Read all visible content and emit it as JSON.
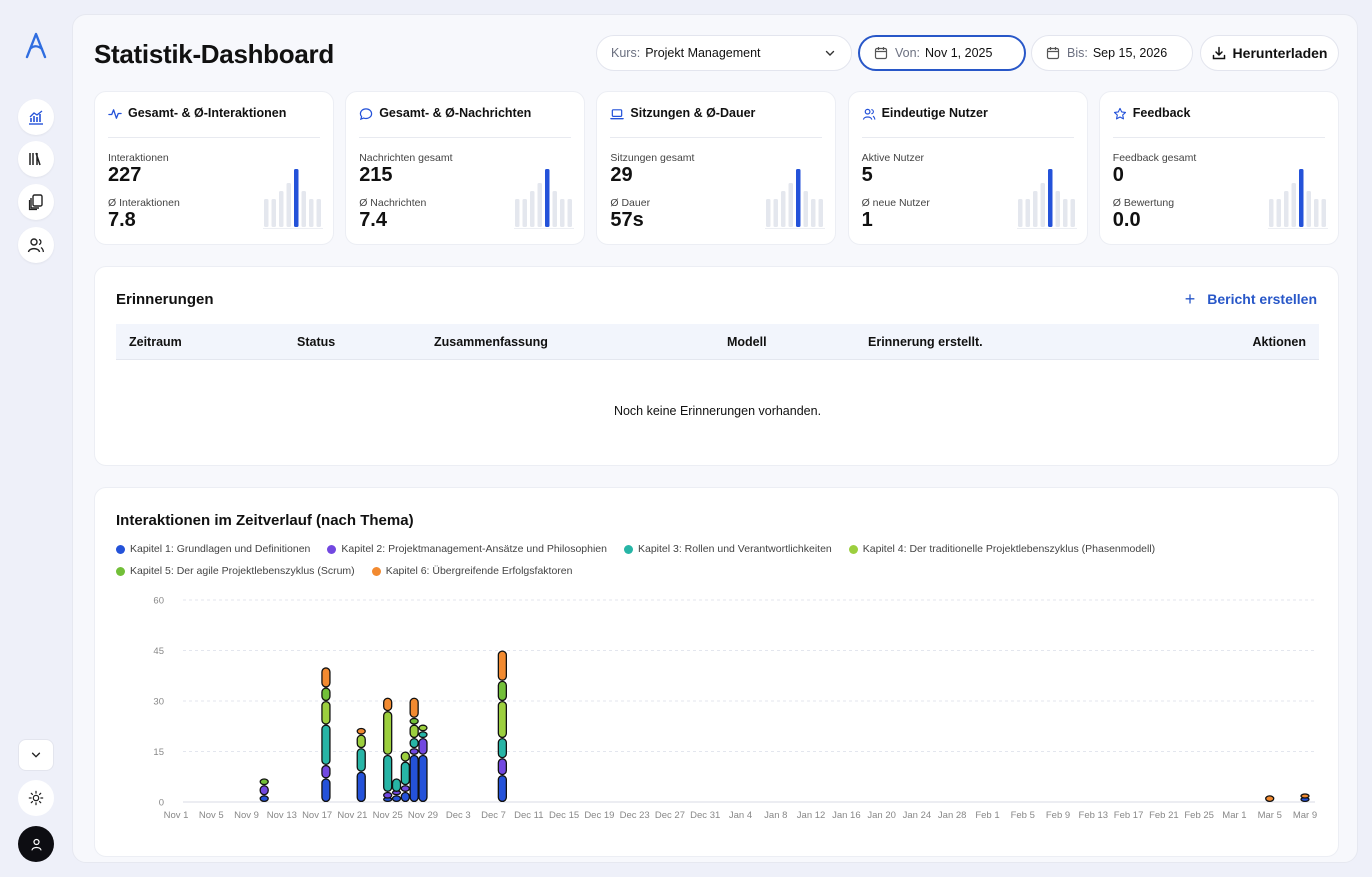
{
  "sidebar": {
    "logo": "a-logo",
    "items": [
      {
        "icon": "chart-icon",
        "name": "statistics"
      },
      {
        "icon": "library-icon",
        "name": "library"
      },
      {
        "icon": "documents-icon",
        "name": "documents"
      },
      {
        "icon": "users-icon",
        "name": "users"
      }
    ],
    "collapse_icon": "chevron-down-icon",
    "theme_icon": "sun-icon",
    "user_icon": "user-icon"
  },
  "header": {
    "title": "Statistik-Dashboard",
    "course_label": "Kurs:",
    "course_value": "Projekt Management",
    "from_label": "Von:",
    "from_value": "Nov 1, 2025",
    "to_label": "Bis:",
    "to_value": "Sep 15, 2026",
    "download_label": "Herunterladen"
  },
  "stats": [
    {
      "title": "Gesamt- & Ø-Interaktionen",
      "icon": "activity-icon",
      "label1": "Interaktionen",
      "value1": "227",
      "label2": "Ø Interaktionen",
      "value2": "7.8"
    },
    {
      "title": "Gesamt- & Ø-Nachrichten",
      "icon": "message-icon",
      "label1": "Nachrichten gesamt",
      "value1": "215",
      "label2": "Ø Nachrichten",
      "value2": "7.4"
    },
    {
      "title": "Sitzungen & Ø-Dauer",
      "icon": "laptop-icon",
      "label1": "Sitzungen gesamt",
      "value1": "29",
      "label2": "Ø Dauer",
      "value2": "57s"
    },
    {
      "title": "Eindeutige Nutzer",
      "icon": "users-icon",
      "label1": "Aktive Nutzer",
      "value1": "5",
      "label2": "Ø neue Nutzer",
      "value2": "1"
    },
    {
      "title": "Feedback",
      "icon": "star-icon",
      "label1": "Feedback gesamt",
      "value1": "0",
      "label2": "Ø Bewertung",
      "value2": "0.0"
    }
  ],
  "reminders": {
    "title": "Erinnerungen",
    "action_label": "Bericht erstellen",
    "columns": [
      "Zeitraum",
      "Status",
      "Zusammenfassung",
      "Modell",
      "Erinnerung erstellt.",
      "Aktionen"
    ],
    "empty_text": "Noch keine Erinnerungen vorhanden."
  },
  "chart": {
    "title": "Interaktionen im Zeitverlauf (nach Thema)"
  },
  "chart_data": {
    "type": "bar",
    "stacked": true,
    "title": "Interaktionen im Zeitverlauf (nach Thema)",
    "ylim": [
      0,
      60
    ],
    "yticks": [
      0,
      15,
      30,
      45,
      60
    ],
    "grid": true,
    "legend_position": "top-left",
    "x_tick_labels": [
      "Nov 1",
      "Nov 5",
      "Nov 9",
      "Nov 13",
      "Nov 17",
      "Nov 21",
      "Nov 25",
      "Nov 29",
      "Dec 3",
      "Dec 7",
      "Dec 11",
      "Dec 15",
      "Dec 19",
      "Dec 23",
      "Dec 27",
      "Dec 31",
      "Jan 4",
      "Jan 8",
      "Jan 12",
      "Jan 16",
      "Jan 20",
      "Jan 24",
      "Jan 28",
      "Feb 1",
      "Feb 5",
      "Feb 9",
      "Feb 13",
      "Feb 17",
      "Feb 21",
      "Feb 25",
      "Mar 1",
      "Mar 5",
      "Mar 9"
    ],
    "series": [
      {
        "name": "Kapitel 1: Grundlagen und Definitionen",
        "color": "#2452d9"
      },
      {
        "name": "Kapitel 2: Projektmanagement-Ansätze und Philosophien",
        "color": "#7248e0"
      },
      {
        "name": "Kapitel 3: Rollen und Verantwortlichkeiten",
        "color": "#27b5a6"
      },
      {
        "name": "Kapitel 4: Der traditionelle Projektlebenszyklus (Phasenmodell)",
        "color": "#9ccf3e"
      },
      {
        "name": "Kapitel 5: Der agile Projektlebenszyklus (Scrum)",
        "color": "#72bf38"
      },
      {
        "name": "Kapitel 6: Übergreifende Erfolgsfaktoren",
        "color": "#f28a30"
      }
    ],
    "bars": [
      {
        "date": "Nov 11",
        "values": [
          2,
          3,
          0,
          0,
          2,
          0
        ]
      },
      {
        "date": "Nov 18",
        "values": [
          7,
          4,
          12,
          7,
          4,
          6
        ]
      },
      {
        "date": "Nov 22",
        "values": [
          9,
          0,
          7,
          4,
          0,
          2
        ]
      },
      {
        "date": "Nov 25",
        "values": [
          1,
          2,
          11,
          13,
          0,
          4
        ]
      },
      {
        "date": "Nov 26",
        "values": [
          2,
          1,
          4,
          0,
          0,
          0
        ]
      },
      {
        "date": "Nov 27",
        "values": [
          3,
          2,
          7,
          3,
          0,
          0
        ]
      },
      {
        "date": "Nov 28",
        "values": [
          14,
          2,
          3,
          4,
          2,
          6
        ]
      },
      {
        "date": "Nov 29",
        "values": [
          14,
          5,
          2,
          2,
          0,
          0
        ]
      },
      {
        "date": "Dec 8",
        "values": [
          8,
          5,
          6,
          11,
          6,
          9
        ]
      },
      {
        "date": "Mar 5",
        "values": [
          0,
          0,
          0,
          0,
          0,
          2
        ]
      },
      {
        "date": "Mar 9",
        "values": [
          1,
          0,
          0,
          0,
          0,
          1
        ]
      }
    ]
  }
}
